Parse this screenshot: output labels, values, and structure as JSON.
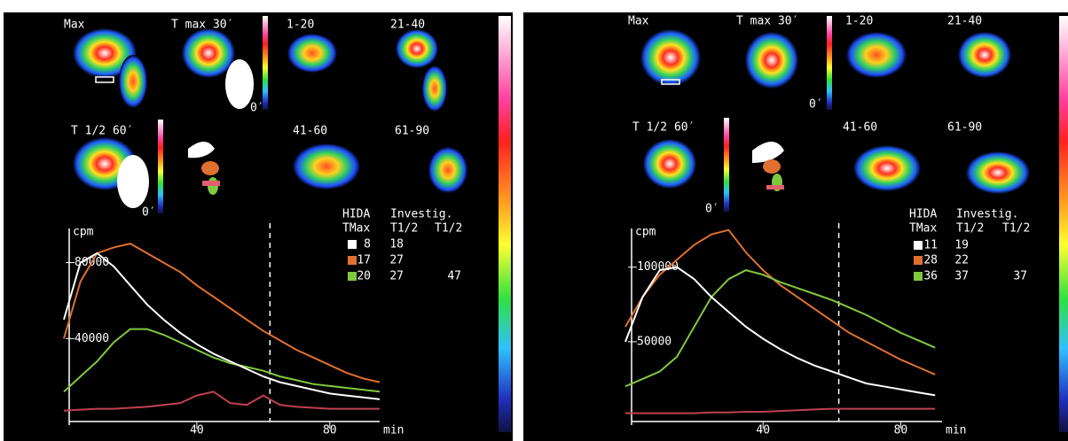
{
  "panels": [
    {
      "image_labels": [
        "Max",
        "T max 30′",
        "0′",
        "1-20",
        "21-40",
        "T 1/2 60′",
        "0′",
        "41-60",
        "61-90"
      ],
      "legend_header": [
        "HIDA",
        "Investig."
      ],
      "legend_columns": [
        "TMax",
        "T1/2",
        "T1/2"
      ],
      "legend_rows": [
        {
          "color": "#ffffff",
          "tmax": 8,
          "hida_t_half": 18
        },
        {
          "color": "#e07030",
          "tmax": 17,
          "hida_t_half": 27
        },
        {
          "color": "#80c840",
          "tmax": 20,
          "hida_t_half": 27,
          "investig_t_half": 47
        }
      ]
    },
    {
      "image_labels": [
        "Max",
        "T max 30′",
        "0′",
        "1-20",
        "21-40",
        "T 1/2 60′",
        "0′",
        "41-60",
        "61-90"
      ],
      "legend_header": [
        "HIDA",
        "Investig."
      ],
      "legend_columns": [
        "TMax",
        "T1/2",
        "T1/2"
      ],
      "legend_rows": [
        {
          "color": "#ffffff",
          "tmax": 11,
          "hida_t_half": 19
        },
        {
          "color": "#e07030",
          "tmax": 28,
          "hida_t_half": 22
        },
        {
          "color": "#80c840",
          "tmax": 36,
          "hida_t_half": 37,
          "investig_t_half": 37
        }
      ]
    }
  ],
  "chart_data": [
    {
      "type": "line",
      "y_label": "cpm",
      "x_label": "min",
      "x": [
        0,
        5,
        10,
        15,
        20,
        25,
        30,
        35,
        40,
        45,
        50,
        55,
        60,
        65,
        70,
        75,
        80,
        85,
        90,
        95
      ],
      "xlim": [
        0,
        95
      ],
      "xticks": [
        40,
        80
      ],
      "ylim": [
        0,
        98000
      ],
      "yticks": [
        40000,
        80000
      ],
      "vline": 62,
      "series": [
        {
          "color": "#e07030",
          "values": [
            40000,
            70000,
            85000,
            88000,
            90000,
            85000,
            80000,
            75000,
            68000,
            62000,
            56000,
            50000,
            44000,
            39000,
            34000,
            30000,
            26000,
            22000,
            19000,
            17000
          ]
        },
        {
          "color": "#80c840",
          "values": [
            12000,
            20000,
            28000,
            38000,
            45000,
            45000,
            42000,
            38000,
            34000,
            30000,
            27000,
            25000,
            23000,
            20000,
            18000,
            16000,
            15000,
            14000,
            13000,
            12000
          ]
        },
        {
          "color": "#ffffff",
          "values": [
            50000,
            80000,
            85000,
            78000,
            68000,
            58000,
            50000,
            43000,
            37000,
            32000,
            28000,
            24000,
            20000,
            17000,
            15000,
            13000,
            11000,
            10000,
            9000,
            8000
          ]
        },
        {
          "color": "#c04050",
          "values": [
            2000,
            2500,
            3000,
            3000,
            3500,
            4000,
            5000,
            6000,
            10000,
            12000,
            6000,
            5000,
            10000,
            5000,
            4000,
            3500,
            3000,
            3000,
            3000,
            3000
          ]
        }
      ]
    },
    {
      "type": "line",
      "y_label": "cpm",
      "x_label": "min",
      "x": [
        0,
        5,
        10,
        15,
        20,
        25,
        30,
        35,
        40,
        45,
        50,
        55,
        60,
        65,
        70,
        75,
        80,
        85,
        90
      ],
      "xlim": [
        0,
        92
      ],
      "xticks": [
        40,
        80
      ],
      "ylim": [
        0,
        126000
      ],
      "yticks": [
        50000,
        100000
      ],
      "vline": 62,
      "series": [
        {
          "color": "#e07030",
          "values": [
            60000,
            80000,
            95000,
            105000,
            115000,
            122000,
            125000,
            110000,
            98000,
            88000,
            80000,
            72000,
            64000,
            56000,
            50000,
            44000,
            38000,
            33000,
            28000
          ]
        },
        {
          "color": "#80c840",
          "values": [
            20000,
            25000,
            30000,
            40000,
            60000,
            80000,
            92000,
            98000,
            95000,
            90000,
            86000,
            82000,
            78000,
            73000,
            68000,
            62000,
            56000,
            51000,
            46000
          ]
        },
        {
          "color": "#ffffff",
          "values": [
            50000,
            80000,
            98000,
            100000,
            92000,
            80000,
            70000,
            60000,
            52000,
            45000,
            39000,
            34000,
            30000,
            26000,
            22000,
            20000,
            18000,
            16000,
            14000
          ]
        },
        {
          "color": "#c04050",
          "values": [
            2000,
            2000,
            2000,
            2000,
            2000,
            2500,
            2500,
            3000,
            3000,
            3500,
            4000,
            4500,
            5000,
            5000,
            5000,
            5000,
            5000,
            5000,
            5000
          ]
        }
      ]
    }
  ]
}
